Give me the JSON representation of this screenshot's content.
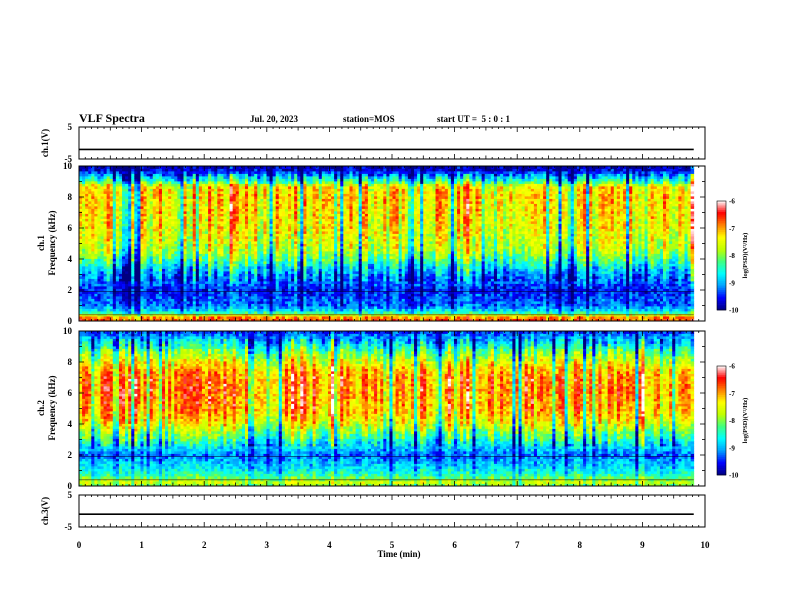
{
  "header": {
    "title": "VLF Spectra",
    "date": "Jul. 20, 2023",
    "station": "station=MOS",
    "start": "start UT =  5 : 0 : 1"
  },
  "colormap": {
    "stops": [
      "#00007f",
      "#0000ff",
      "#00a0ff",
      "#00ffff",
      "#40ff80",
      "#c0ff00",
      "#ffff00",
      "#ff8000",
      "#ff0000",
      "#ffffff"
    ]
  },
  "chart_data": [
    {
      "type": "line",
      "panel": "ch1-waveform",
      "ylabel": "ch.1(V)",
      "ylim": [
        -5,
        5
      ],
      "yticks": [
        "5",
        "-5"
      ],
      "xlim": [
        0,
        10
      ],
      "series": [
        {
          "x": [
            0,
            9.82
          ],
          "y": [
            -2.0,
            -2.0
          ]
        }
      ]
    },
    {
      "type": "heatmap",
      "panel": "ch1-spectrogram",
      "ylabel": "ch.1\nFrequency (kHz)",
      "ylim": [
        0,
        10
      ],
      "yticks": [
        "0",
        "2",
        "4",
        "6",
        "8",
        "10"
      ],
      "xlim": [
        0,
        10
      ],
      "data_end_min": 9.82,
      "colorbar": {
        "label": "log(PSD)(V²/Hz)",
        "range": [
          -10,
          -6
        ],
        "ticks": [
          "-6",
          "-7",
          "-8",
          "-9",
          "-10"
        ]
      },
      "profile": {
        "freq_khz": [
          0.0,
          0.3,
          0.6,
          1.0,
          1.5,
          2.0,
          2.5,
          3.0,
          3.5,
          4.0,
          4.5,
          5.0,
          6.0,
          7.0,
          8.0,
          8.7,
          9.0,
          9.4,
          9.7,
          10.0
        ],
        "log_psd": [
          -6.6,
          -6.9,
          -8.6,
          -9.2,
          -9.3,
          -9.5,
          -9.2,
          -9.0,
          -8.6,
          -8.1,
          -7.7,
          -7.5,
          -7.3,
          -7.2,
          -7.1,
          -7.2,
          -8.2,
          -8.9,
          -9.6,
          -9.8
        ]
      }
    },
    {
      "type": "heatmap",
      "panel": "ch2-spectrogram",
      "ylabel": "ch.2\nFrequency (kHz)",
      "ylim": [
        0,
        10
      ],
      "yticks": [
        "0",
        "2",
        "4",
        "6",
        "8",
        "10"
      ],
      "xlim": [
        0,
        10
      ],
      "data_end_min": 9.82,
      "colorbar": {
        "label": "log(PSD)(V²/Hz)",
        "range": [
          -10,
          -6
        ],
        "ticks": [
          "-6",
          "-7",
          "-8",
          "-9",
          "-10"
        ]
      },
      "profile": {
        "freq_khz": [
          0.0,
          0.3,
          0.6,
          1.0,
          1.5,
          2.0,
          2.5,
          3.0,
          3.5,
          4.0,
          4.5,
          5.0,
          6.0,
          7.0,
          7.5,
          8.0,
          8.7,
          9.2,
          9.6,
          10.0
        ],
        "log_psd": [
          -8.0,
          -7.5,
          -8.2,
          -8.6,
          -8.9,
          -9.2,
          -8.8,
          -8.3,
          -7.9,
          -7.4,
          -7.1,
          -6.9,
          -6.8,
          -6.8,
          -7.0,
          -7.4,
          -8.0,
          -8.6,
          -9.0,
          -9.4
        ]
      }
    },
    {
      "type": "line",
      "panel": "ch3-waveform",
      "ylabel": "ch.3(V)",
      "ylim": [
        -5,
        5
      ],
      "yticks": [
        "5",
        "-5"
      ],
      "xlim": [
        0,
        10
      ],
      "series": [
        {
          "x": [
            0,
            9.82
          ],
          "y": [
            -1.0,
            -1.0
          ]
        }
      ]
    }
  ],
  "xaxis": {
    "label": "Time (min)",
    "range": [
      0,
      10
    ],
    "ticks": [
      "0",
      "1",
      "2",
      "3",
      "4",
      "5",
      "6",
      "7",
      "8",
      "9",
      "10"
    ]
  }
}
